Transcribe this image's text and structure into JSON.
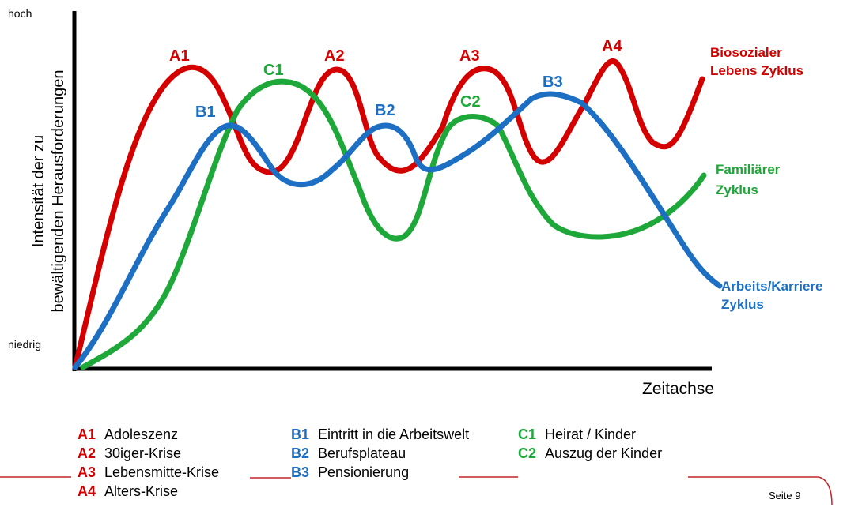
{
  "axes": {
    "y_title_line1": "Intensität der zu",
    "y_title_line2": "bewältigenden Herausforderungen",
    "y_high": "hoch",
    "y_low": "niedrig",
    "x_title": "Zeitachse"
  },
  "colors": {
    "red": "#d40000",
    "blue": "#1c6fc2",
    "green": "#1ea83a",
    "axis": "#000000"
  },
  "curves": {
    "red": {
      "label_line1": "Biosozialer",
      "label_line2": "Lebens Zyklus"
    },
    "green": {
      "label_line1": "Familiärer",
      "label_line2": "Zyklus"
    },
    "blue": {
      "label_line1": "Arbeits/Karriere",
      "label_line2": "Zyklus"
    }
  },
  "markers": {
    "A1": "A1",
    "A2": "A2",
    "A3": "A3",
    "A4": "A4",
    "B1": "B1",
    "B2": "B2",
    "B3": "B3",
    "C1": "C1",
    "C2": "C2"
  },
  "legend": {
    "a": [
      {
        "code": "A1",
        "text": "Adoleszenz"
      },
      {
        "code": "A2",
        "text": "30iger-Krise"
      },
      {
        "code": "A3",
        "text": "Lebensmitte-Krise"
      },
      {
        "code": "A4",
        "text": "Alters-Krise"
      }
    ],
    "b": [
      {
        "code": "B1",
        "text": "Eintritt in die Arbeitswelt"
      },
      {
        "code": "B2",
        "text": "Berufsplateau"
      },
      {
        "code": "B3",
        "text": "Pensionierung"
      }
    ],
    "c": [
      {
        "code": "C1",
        "text": "Heirat / Kinder"
      },
      {
        "code": "C2",
        "text": "Auszug der Kinder"
      }
    ]
  },
  "footer": {
    "page": "Seite 9"
  }
}
